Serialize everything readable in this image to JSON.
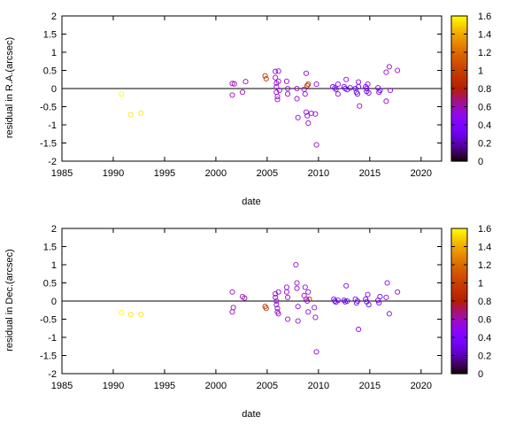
{
  "chart_data": [
    {
      "type": "scatter",
      "xlabel": "date",
      "ylabel": "residual in R.A.(arcsec)",
      "xlim": [
        1985,
        2022
      ],
      "ylim": [
        -2,
        2
      ],
      "xticks": [
        "1985",
        "1990",
        "1995",
        "2000",
        "2005",
        "2010",
        "2015",
        "2020"
      ],
      "yticks": [
        "2",
        "1.5",
        "1",
        "0.5",
        "0",
        "-0.5",
        "-1",
        "-1.5",
        "-2"
      ],
      "colorbar": {
        "min": 0,
        "max": 1.6,
        "ticks": [
          "1.6",
          "1.4",
          "1.2",
          "1",
          "0.8",
          "0.6",
          "0.4",
          "0.2",
          "0"
        ]
      },
      "zero_line": true,
      "points": [
        {
          "x": 1990.8,
          "y": -0.15,
          "c": 1.6
        },
        {
          "x": 1991.7,
          "y": -0.72,
          "c": 1.55
        },
        {
          "x": 1992.7,
          "y": -0.68,
          "c": 1.55
        },
        {
          "x": 2001.6,
          "y": 0.14,
          "c": 0.6
        },
        {
          "x": 2001.6,
          "y": -0.18,
          "c": 0.6
        },
        {
          "x": 2001.8,
          "y": 0.13,
          "c": 0.6
        },
        {
          "x": 2002.6,
          "y": -0.1,
          "c": 0.6
        },
        {
          "x": 2002.9,
          "y": 0.19,
          "c": 0.6
        },
        {
          "x": 2004.8,
          "y": 0.35,
          "c": 0.9
        },
        {
          "x": 2004.9,
          "y": 0.27,
          "c": 0.95
        },
        {
          "x": 2005.8,
          "y": 0.47,
          "c": 0.55
        },
        {
          "x": 2005.8,
          "y": 0.3,
          "c": 0.55
        },
        {
          "x": 2005.9,
          "y": 0.15,
          "c": 0.55
        },
        {
          "x": 2005.9,
          "y": 0.05,
          "c": 0.55
        },
        {
          "x": 2005.9,
          "y": -0.1,
          "c": 0.55
        },
        {
          "x": 2006.0,
          "y": -0.22,
          "c": 0.55
        },
        {
          "x": 2006.0,
          "y": -0.3,
          "c": 0.55
        },
        {
          "x": 2006.1,
          "y": 0.48,
          "c": 0.55
        },
        {
          "x": 2006.1,
          "y": 0.2,
          "c": 0.55
        },
        {
          "x": 2006.2,
          "y": -0.05,
          "c": 0.55
        },
        {
          "x": 2006.9,
          "y": 0.2,
          "c": 0.55
        },
        {
          "x": 2007.0,
          "y": 0.0,
          "c": 0.55
        },
        {
          "x": 2007.0,
          "y": -0.15,
          "c": 0.55
        },
        {
          "x": 2007.9,
          "y": 0.0,
          "c": 0.55
        },
        {
          "x": 2007.9,
          "y": -0.28,
          "c": 0.55
        },
        {
          "x": 2008.0,
          "y": -0.8,
          "c": 0.55
        },
        {
          "x": 2008.6,
          "y": -0.02,
          "c": 0.55
        },
        {
          "x": 2008.7,
          "y": -0.15,
          "c": 0.55
        },
        {
          "x": 2008.8,
          "y": 0.42,
          "c": 0.55
        },
        {
          "x": 2008.9,
          "y": 0.08,
          "c": 0.85
        },
        {
          "x": 2009.0,
          "y": 0.12,
          "c": 0.85
        },
        {
          "x": 2008.8,
          "y": -0.65,
          "c": 0.55
        },
        {
          "x": 2008.9,
          "y": -0.75,
          "c": 0.55
        },
        {
          "x": 2009.0,
          "y": -0.95,
          "c": 0.55
        },
        {
          "x": 2009.3,
          "y": -0.68,
          "c": 0.55
        },
        {
          "x": 2009.7,
          "y": -0.7,
          "c": 0.55
        },
        {
          "x": 2009.8,
          "y": -1.55,
          "c": 0.55
        },
        {
          "x": 2009.8,
          "y": 0.12,
          "c": 0.55
        },
        {
          "x": 2011.4,
          "y": 0.05,
          "c": 0.3
        },
        {
          "x": 2011.6,
          "y": 0.02,
          "c": 0.3
        },
        {
          "x": 2011.7,
          "y": -0.02,
          "c": 0.3
        },
        {
          "x": 2011.9,
          "y": 0.12,
          "c": 0.5
        },
        {
          "x": 2011.9,
          "y": -0.15,
          "c": 0.5
        },
        {
          "x": 2012.5,
          "y": 0.05,
          "c": 0.3
        },
        {
          "x": 2012.6,
          "y": 0.0,
          "c": 0.3
        },
        {
          "x": 2012.7,
          "y": 0.25,
          "c": 0.5
        },
        {
          "x": 2012.8,
          "y": -0.03,
          "c": 0.3
        },
        {
          "x": 2013.1,
          "y": 0.02,
          "c": 0.3
        },
        {
          "x": 2013.6,
          "y": 0.0,
          "c": 0.3
        },
        {
          "x": 2013.7,
          "y": -0.1,
          "c": 0.3
        },
        {
          "x": 2013.8,
          "y": -0.15,
          "c": 0.3
        },
        {
          "x": 2013.9,
          "y": 0.05,
          "c": 0.3
        },
        {
          "x": 2013.9,
          "y": 0.18,
          "c": 0.5
        },
        {
          "x": 2014.0,
          "y": -0.48,
          "c": 0.5
        },
        {
          "x": 2014.6,
          "y": 0.05,
          "c": 0.3
        },
        {
          "x": 2014.7,
          "y": 0.0,
          "c": 0.3
        },
        {
          "x": 2014.7,
          "y": -0.08,
          "c": 0.3
        },
        {
          "x": 2014.8,
          "y": 0.12,
          "c": 0.5
        },
        {
          "x": 2014.9,
          "y": -0.12,
          "c": 0.3
        },
        {
          "x": 2015.8,
          "y": 0.02,
          "c": 0.3
        },
        {
          "x": 2015.9,
          "y": -0.1,
          "c": 0.3
        },
        {
          "x": 2016.0,
          "y": -0.05,
          "c": 0.3
        },
        {
          "x": 2016.6,
          "y": -0.35,
          "c": 0.55
        },
        {
          "x": 2016.6,
          "y": 0.45,
          "c": 0.55
        },
        {
          "x": 2016.9,
          "y": 0.6,
          "c": 0.55
        },
        {
          "x": 2017.0,
          "y": -0.05,
          "c": 0.55
        },
        {
          "x": 2017.7,
          "y": 0.5,
          "c": 0.55
        }
      ]
    },
    {
      "type": "scatter",
      "xlabel": "date",
      "ylabel": "residual in Dec.(arcsec)",
      "xlim": [
        1985,
        2022
      ],
      "ylim": [
        -2,
        2
      ],
      "xticks": [
        "1985",
        "1990",
        "1995",
        "2000",
        "2005",
        "2010",
        "2015",
        "2020"
      ],
      "yticks": [
        "2",
        "1.5",
        "1",
        "0.5",
        "0",
        "-0.5",
        "-1",
        "-1.5",
        "-2"
      ],
      "colorbar": {
        "min": 0,
        "max": 1.6,
        "ticks": [
          "1.6",
          "1.4",
          "1.2",
          "1",
          "0.8",
          "0.6",
          "0.4",
          "0.2",
          "0"
        ]
      },
      "zero_line": true,
      "points": [
        {
          "x": 1990.8,
          "y": -0.32,
          "c": 1.6
        },
        {
          "x": 1991.7,
          "y": -0.37,
          "c": 1.55
        },
        {
          "x": 1992.7,
          "y": -0.37,
          "c": 1.55
        },
        {
          "x": 2001.6,
          "y": 0.25,
          "c": 0.6
        },
        {
          "x": 2001.6,
          "y": -0.3,
          "c": 0.6
        },
        {
          "x": 2001.7,
          "y": -0.18,
          "c": 0.6
        },
        {
          "x": 2002.6,
          "y": 0.12,
          "c": 0.6
        },
        {
          "x": 2002.8,
          "y": 0.08,
          "c": 0.6
        },
        {
          "x": 2004.8,
          "y": -0.15,
          "c": 0.9
        },
        {
          "x": 2004.9,
          "y": -0.2,
          "c": 0.95
        },
        {
          "x": 2005.8,
          "y": 0.2,
          "c": 0.55
        },
        {
          "x": 2005.8,
          "y": 0.1,
          "c": 0.55
        },
        {
          "x": 2005.9,
          "y": 0.0,
          "c": 0.55
        },
        {
          "x": 2005.9,
          "y": -0.1,
          "c": 0.55
        },
        {
          "x": 2006.0,
          "y": -0.2,
          "c": 0.55
        },
        {
          "x": 2006.0,
          "y": -0.3,
          "c": 0.55
        },
        {
          "x": 2006.1,
          "y": 0.25,
          "c": 0.55
        },
        {
          "x": 2006.1,
          "y": -0.35,
          "c": 0.55
        },
        {
          "x": 2006.9,
          "y": 0.38,
          "c": 0.55
        },
        {
          "x": 2006.9,
          "y": 0.25,
          "c": 0.55
        },
        {
          "x": 2007.0,
          "y": 0.1,
          "c": 0.55
        },
        {
          "x": 2007.0,
          "y": -0.5,
          "c": 0.55
        },
        {
          "x": 2007.8,
          "y": 1.0,
          "c": 0.55
        },
        {
          "x": 2007.9,
          "y": 0.5,
          "c": 0.55
        },
        {
          "x": 2007.9,
          "y": 0.35,
          "c": 0.55
        },
        {
          "x": 2008.0,
          "y": -0.15,
          "c": 0.55
        },
        {
          "x": 2008.0,
          "y": -0.55,
          "c": 0.55
        },
        {
          "x": 2008.6,
          "y": 0.15,
          "c": 0.55
        },
        {
          "x": 2008.7,
          "y": 0.38,
          "c": 0.55
        },
        {
          "x": 2008.8,
          "y": 0.05,
          "c": 0.55
        },
        {
          "x": 2008.9,
          "y": 0.0,
          "c": 0.55
        },
        {
          "x": 2009.0,
          "y": 0.25,
          "c": 0.55
        },
        {
          "x": 2009.0,
          "y": -0.3,
          "c": 0.55
        },
        {
          "x": 2009.1,
          "y": 0.05,
          "c": 0.85
        },
        {
          "x": 2009.6,
          "y": -0.18,
          "c": 0.55
        },
        {
          "x": 2009.7,
          "y": -0.45,
          "c": 0.55
        },
        {
          "x": 2009.8,
          "y": -1.4,
          "c": 0.55
        },
        {
          "x": 2011.5,
          "y": 0.05,
          "c": 0.3
        },
        {
          "x": 2011.6,
          "y": 0.0,
          "c": 0.3
        },
        {
          "x": 2011.7,
          "y": -0.03,
          "c": 0.3
        },
        {
          "x": 2011.9,
          "y": 0.02,
          "c": 0.5
        },
        {
          "x": 2012.5,
          "y": 0.02,
          "c": 0.3
        },
        {
          "x": 2012.6,
          "y": -0.02,
          "c": 0.3
        },
        {
          "x": 2012.7,
          "y": 0.42,
          "c": 0.5
        },
        {
          "x": 2012.8,
          "y": 0.0,
          "c": 0.3
        },
        {
          "x": 2013.6,
          "y": 0.05,
          "c": 0.3
        },
        {
          "x": 2013.7,
          "y": -0.05,
          "c": 0.3
        },
        {
          "x": 2013.8,
          "y": 0.0,
          "c": 0.3
        },
        {
          "x": 2013.9,
          "y": -0.78,
          "c": 0.5
        },
        {
          "x": 2014.6,
          "y": 0.05,
          "c": 0.3
        },
        {
          "x": 2014.7,
          "y": -0.02,
          "c": 0.3
        },
        {
          "x": 2014.8,
          "y": 0.18,
          "c": 0.5
        },
        {
          "x": 2014.9,
          "y": -0.1,
          "c": 0.3
        },
        {
          "x": 2015.8,
          "y": 0.02,
          "c": 0.3
        },
        {
          "x": 2015.9,
          "y": -0.05,
          "c": 0.3
        },
        {
          "x": 2016.0,
          "y": 0.12,
          "c": 0.3
        },
        {
          "x": 2016.6,
          "y": 0.1,
          "c": 0.55
        },
        {
          "x": 2016.7,
          "y": 0.5,
          "c": 0.55
        },
        {
          "x": 2016.9,
          "y": -0.35,
          "c": 0.55
        },
        {
          "x": 2017.7,
          "y": 0.25,
          "c": 0.55
        }
      ]
    }
  ]
}
